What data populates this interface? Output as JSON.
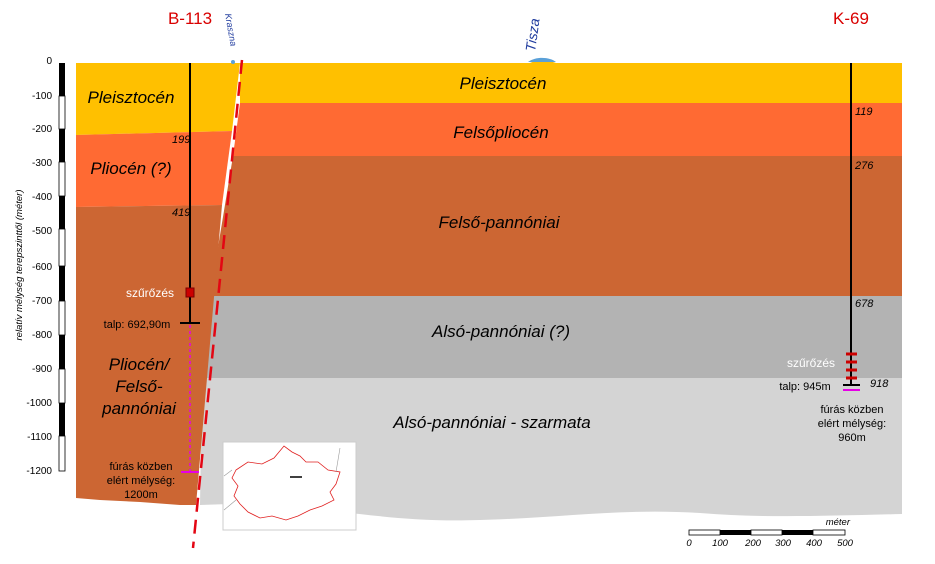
{
  "boreholes": {
    "left": {
      "name": "B-113",
      "depth_labels": [
        "199",
        "419"
      ],
      "screen_label": "szűrőzés",
      "bottom_label": "talp: 692,90m",
      "reached_label": [
        "fúrás közben",
        "elért mélység:",
        "1200m"
      ]
    },
    "right": {
      "name": "K-69",
      "depth_labels": [
        "119",
        "276",
        "678",
        "918"
      ],
      "screen_label": "szűrőzés",
      "bottom_label": "talp: 945m",
      "reached_label": [
        "fúrás közben",
        "elért mélység:",
        "960m"
      ]
    }
  },
  "rivers": {
    "krasznа": "Kraszna",
    "tisza": "Tisza"
  },
  "layers_main": [
    {
      "name": "Pleisztocén",
      "color": "#ffc000"
    },
    {
      "name": "Felsőpliocén",
      "color": "#ff6a33"
    },
    {
      "name": "Felső-pannóniai",
      "color": "#cc6633"
    },
    {
      "name": "Alsó-pannóniai (?)",
      "color": "#b3b3b3"
    },
    {
      "name": "Alsó-pannóniai - szarmata",
      "color": "#d4d4d4"
    }
  ],
  "layers_left": {
    "pleisztocen": "Pleisztocén",
    "pliocen": "Pliocén (?)",
    "pliocen_felso": [
      "Pliocén/",
      "Felső-",
      "pannóniai"
    ]
  },
  "axis": {
    "label": "relatív mélység terepszinttől (méter)",
    "ticks": [
      "0",
      "-100",
      "-200",
      "-300",
      "-400",
      "-500",
      "-600",
      "-700",
      "-800",
      "-900",
      "-1000",
      "-1100",
      "-1200"
    ]
  },
  "scalebar": {
    "unit": "méter",
    "ticks": [
      "0",
      "100",
      "200",
      "300",
      "400",
      "500"
    ]
  },
  "colors": {
    "fault": "#e30613",
    "borehole_name": "#d90000",
    "river_label": "#1f3b9e",
    "screen": "#cc0000",
    "reached": "#e600e6"
  }
}
